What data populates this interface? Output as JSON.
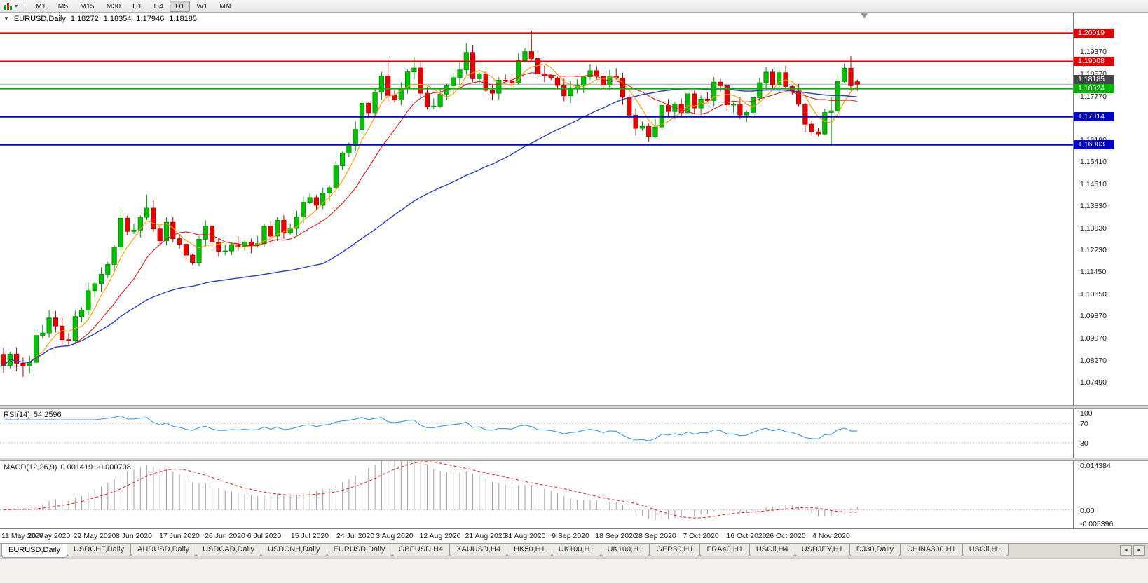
{
  "icons": {
    "chart_menu_caret": "▼",
    "toolbar_caret": "▾",
    "tab_scroll_left": "◄",
    "tab_scroll_right": "►"
  },
  "toolbar": {
    "timeframes": [
      {
        "label": "M1",
        "active": false
      },
      {
        "label": "M5",
        "active": false
      },
      {
        "label": "M15",
        "active": false
      },
      {
        "label": "M30",
        "active": false
      },
      {
        "label": "H1",
        "active": false
      },
      {
        "label": "H4",
        "active": false
      },
      {
        "label": "D1",
        "active": true
      },
      {
        "label": "W1",
        "active": false
      },
      {
        "label": "MN",
        "active": false
      }
    ]
  },
  "chart_header": {
    "symbol": "EURUSD,Daily",
    "open": "1.18272",
    "high": "1.18354",
    "low": "1.17946",
    "close": "1.18185"
  },
  "rsi_panel": {
    "title": "RSI(14)",
    "value": "54.2596"
  },
  "macd_panel": {
    "title": "MACD(12,26,9)",
    "main_value": "0.001419",
    "signal_value": "-0.000708"
  },
  "chart_data": {
    "type": "candlestick",
    "title": "EURUSD,Daily",
    "symbol": "EURUSD",
    "timeframe": "Daily",
    "y_range": {
      "top": 1.2076,
      "bottom": 1.06648
    },
    "y_ticks": [
      "1.19370",
      "1.18570",
      "1.17770",
      "1.16190",
      "1.15410",
      "1.14610",
      "1.13830",
      "1.13030",
      "1.12230",
      "1.11450",
      "1.10650",
      "1.09870",
      "1.09070",
      "1.08270",
      "1.07490"
    ],
    "x_labels": [
      {
        "i": 0,
        "label": "11 May 2020"
      },
      {
        "i": 7,
        "label": "20 May 2020"
      },
      {
        "i": 14,
        "label": "29 May 2020"
      },
      {
        "i": 20,
        "label": "8 Jun 2020"
      },
      {
        "i": 27,
        "label": "17 Jun 2020"
      },
      {
        "i": 34,
        "label": "26 Jun 2020"
      },
      {
        "i": 40,
        "label": "6 Jul 2020"
      },
      {
        "i": 47,
        "label": "15 Jul 2020"
      },
      {
        "i": 54,
        "label": "24 Jul 2020"
      },
      {
        "i": 60,
        "label": "3 Aug 2020"
      },
      {
        "i": 67,
        "label": "12 Aug 2020"
      },
      {
        "i": 74,
        "label": "21 Aug 2020"
      },
      {
        "i": 80,
        "label": "31 Aug 2020"
      },
      {
        "i": 87,
        "label": "9 Sep 2020"
      },
      {
        "i": 94,
        "label": "18 Sep 2020"
      },
      {
        "i": 100,
        "label": "28 Sep 2020"
      },
      {
        "i": 107,
        "label": "7 Oct 2020"
      },
      {
        "i": 114,
        "label": "16 Oct 2020"
      },
      {
        "i": 120,
        "label": "26 Oct 2020"
      },
      {
        "i": 127,
        "label": "4 Nov 2020"
      }
    ],
    "closes": [
      1.0807,
      1.0848,
      1.0815,
      1.0805,
      1.0818,
      1.0915,
      1.0924,
      1.0978,
      1.0949,
      1.09,
      1.0897,
      1.0983,
      1.1006,
      1.1076,
      1.1101,
      1.1135,
      1.117,
      1.1233,
      1.1337,
      1.1289,
      1.1294,
      1.134,
      1.1373,
      1.1298,
      1.1255,
      1.1322,
      1.1263,
      1.1243,
      1.1204,
      1.1177,
      1.1261,
      1.1308,
      1.1251,
      1.1218,
      1.1219,
      1.1242,
      1.1234,
      1.1251,
      1.1239,
      1.1245,
      1.1308,
      1.1272,
      1.1329,
      1.1284,
      1.13,
      1.1341,
      1.1394,
      1.1411,
      1.1383,
      1.1427,
      1.1446,
      1.1525,
      1.1571,
      1.1596,
      1.1656,
      1.175,
      1.1716,
      1.179,
      1.1847,
      1.1778,
      1.1762,
      1.1803,
      1.1863,
      1.1877,
      1.1786,
      1.1738,
      1.174,
      1.1783,
      1.1813,
      1.1842,
      1.187,
      1.1933,
      1.1838,
      1.1856,
      1.1796,
      1.1786,
      1.1833,
      1.183,
      1.1823,
      1.1904,
      1.1936,
      1.1911,
      1.1855,
      1.185,
      1.184,
      1.1814,
      1.1777,
      1.1801,
      1.1814,
      1.1845,
      1.1867,
      1.1847,
      1.1815,
      1.1847,
      1.184,
      1.1772,
      1.1707,
      1.166,
      1.1667,
      1.1631,
      1.1665,
      1.1742,
      1.172,
      1.1747,
      1.1716,
      1.1784,
      1.1733,
      1.1765,
      1.176,
      1.1826,
      1.1813,
      1.1745,
      1.1746,
      1.1708,
      1.1717,
      1.177,
      1.1824,
      1.1862,
      1.1816,
      1.186,
      1.181,
      1.1794,
      1.1746,
      1.1675,
      1.1647,
      1.164,
      1.1717,
      1.1723,
      1.1828,
      1.1876,
      1.1813,
      1.18185
    ],
    "wick_overrides": {
      "0": {
        "l": 1.078
      },
      "3": {
        "l": 1.0766
      },
      "22": {
        "h": 1.1422
      },
      "59": {
        "h": 1.1909
      },
      "63": {
        "h": 1.1916
      },
      "71": {
        "h": 1.1966
      },
      "81": {
        "h": 1.2011
      },
      "99": {
        "l": 1.1612
      },
      "127": {
        "h": 1.1772,
        "l": 1.1603
      },
      "130": {
        "h": 1.192,
        "l": 1.1795
      }
    },
    "last_bar": {
      "o": 1.18272,
      "h": 1.18354,
      "l": 1.17946,
      "c": 1.18185
    },
    "candle_colors": {
      "up": "#00c000",
      "up_stroke": "#008f00",
      "down": "#e80000",
      "down_stroke": "#b00000"
    },
    "ma": [
      {
        "period": 5,
        "color": "#ff9c00"
      },
      {
        "period": 12,
        "color": "#d91e1e"
      },
      {
        "period": 50,
        "color": "#2f3fc0"
      }
    ],
    "horizontal_lines": [
      {
        "price": 1.20019,
        "label": "1.20019",
        "color": "#e00000"
      },
      {
        "price": 1.19008,
        "label": "1.19008",
        "color": "#e00000"
      },
      {
        "price": 1.18024,
        "label": "1.18024",
        "color": "#00b400"
      },
      {
        "price": 1.17014,
        "label": "1.17014",
        "color": "#0000cd"
      },
      {
        "price": 1.16003,
        "label": "1.16003",
        "color": "#0000cd"
      }
    ],
    "bid": {
      "price": 1.18185,
      "label": "1.18185",
      "line_color": "#a6a6a6",
      "box_color": "#43474c"
    },
    "rsi": {
      "period": 14,
      "line_color": "#4496dd",
      "range": [
        0,
        100
      ],
      "level_lines": [
        70,
        30
      ],
      "axis_labels": [
        {
          "v": 100,
          "label": "100"
        },
        {
          "v": 70,
          "label": "70"
        },
        {
          "v": 30,
          "label": "30"
        }
      ]
    },
    "macd": {
      "fast": 12,
      "slow": 26,
      "signal": 9,
      "histogram_color": "#a0a0a0",
      "signal_color": "#dd2222",
      "range": [
        -0.005396,
        0.014384
      ],
      "axis_labels": [
        {
          "v": 0.014384,
          "label": "0.014384"
        },
        {
          "v": 0,
          "label": "0.00"
        },
        {
          "v": -0.005396,
          "label": "-0.005396"
        }
      ]
    }
  },
  "tabs": {
    "items": [
      {
        "label": "EURUSD,Daily",
        "active": true
      },
      {
        "label": "USDCHF,Daily",
        "active": false
      },
      {
        "label": "AUDUSD,Daily",
        "active": false
      },
      {
        "label": "USDCAD,Daily",
        "active": false
      },
      {
        "label": "USDCNH,Daily",
        "active": false
      },
      {
        "label": "EURUSD,Daily",
        "active": false
      },
      {
        "label": "GBPUSD,H4",
        "active": false
      },
      {
        "label": "XAUUSD,H4",
        "active": false
      },
      {
        "label": "HK50,H1",
        "active": false
      },
      {
        "label": "UK100,H1",
        "active": false
      },
      {
        "label": "UK100,H1",
        "active": false
      },
      {
        "label": "GER30,H1",
        "active": false
      },
      {
        "label": "FRA40,H1",
        "active": false
      },
      {
        "label": "USOil,H4",
        "active": false
      },
      {
        "label": "USDJPY,H1",
        "active": false
      },
      {
        "label": "DJ30,Daily",
        "active": false
      },
      {
        "label": "CHINA300,H1",
        "active": false
      },
      {
        "label": "USOil,H1",
        "active": false
      }
    ]
  }
}
